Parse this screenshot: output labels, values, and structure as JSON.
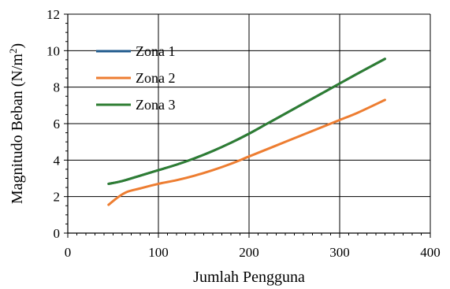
{
  "colors": {
    "zona1": "#1f5a8c",
    "zona2": "#ed7d31",
    "zona3": "#2e7d32",
    "grid": "#000000",
    "axis": "#000000"
  },
  "chart_data": {
    "type": "line",
    "xlabel": "Jumlah Pengguna",
    "ylabel": "Magnitudo Beban (N/m²)",
    "xlim": [
      0,
      400
    ],
    "ylim": [
      0,
      12
    ],
    "xticks": [
      0,
      100,
      200,
      300,
      400
    ],
    "yticks": [
      0,
      2,
      4,
      6,
      8,
      10,
      12
    ],
    "grid": true,
    "legend_position": "top-left",
    "series": [
      {
        "name": "Zona 1",
        "color": "#1f5a8c",
        "x": [
          45,
          60,
          80,
          100,
          120,
          140,
          160,
          180,
          200,
          220,
          240,
          260,
          280,
          300,
          320,
          350
        ],
        "y": [
          2.7,
          2.85,
          3.15,
          3.45,
          3.75,
          4.1,
          4.5,
          4.95,
          5.45,
          6.0,
          6.55,
          7.1,
          7.65,
          8.2,
          8.75,
          9.55
        ]
      },
      {
        "name": "Zona 2",
        "color": "#ed7d31",
        "x": [
          45,
          55,
          65,
          80,
          100,
          120,
          140,
          160,
          180,
          200,
          220,
          240,
          260,
          280,
          300,
          320,
          350
        ],
        "y": [
          1.55,
          1.95,
          2.25,
          2.45,
          2.7,
          2.9,
          3.15,
          3.45,
          3.8,
          4.2,
          4.6,
          5.0,
          5.4,
          5.8,
          6.2,
          6.6,
          7.3
        ]
      },
      {
        "name": "Zona 3",
        "color": "#2e7d32",
        "x": [
          45,
          60,
          80,
          100,
          120,
          140,
          160,
          180,
          200,
          220,
          240,
          260,
          280,
          300,
          320,
          350
        ],
        "y": [
          2.7,
          2.85,
          3.15,
          3.45,
          3.75,
          4.1,
          4.5,
          4.95,
          5.45,
          6.0,
          6.55,
          7.1,
          7.65,
          8.2,
          8.75,
          9.55
        ]
      }
    ]
  }
}
